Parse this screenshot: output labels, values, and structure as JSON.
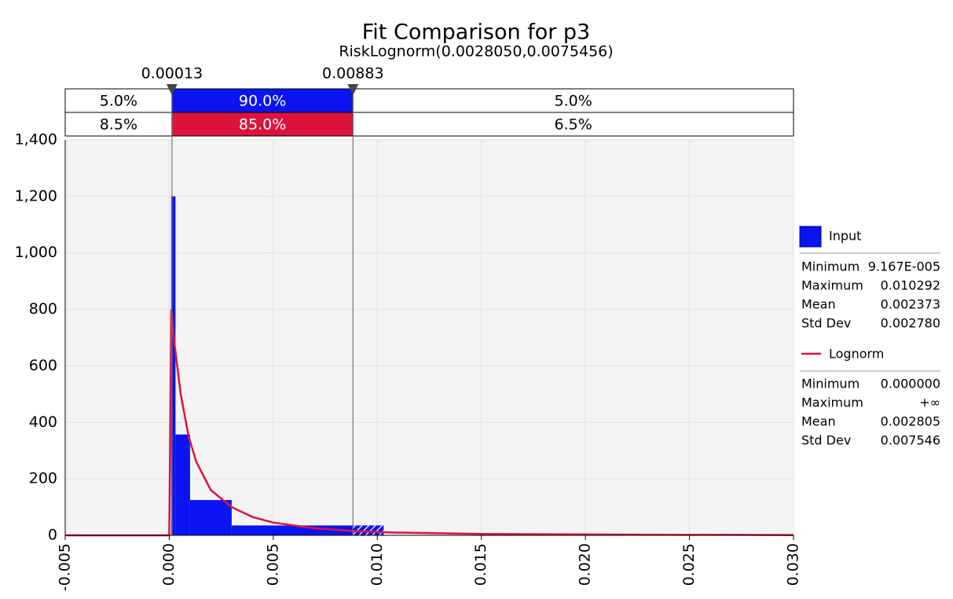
{
  "chart_data": {
    "type": "histogram",
    "title": "Fit Comparison for p3",
    "subtitle": "RiskLognorm(0.0028050,0.0075456)",
    "xlim": [
      -0.005,
      0.03
    ],
    "xticks": [
      -0.005,
      {
        "value": 0,
        "label": "0.000"
      },
      0.005,
      {
        "value": 0.01,
        "label": "0.010"
      },
      0.015,
      {
        "value": 0.02,
        "label": "0.020"
      },
      0.025,
      {
        "value": 0.03,
        "label": "0.030"
      }
    ],
    "ylim": [
      0,
      1400
    ],
    "yticks": [
      0,
      200,
      400,
      600,
      800,
      {
        "value": 1000,
        "label": "1,000"
      },
      {
        "value": 1200,
        "label": "1,200"
      },
      {
        "value": 1400,
        "label": "1,400"
      }
    ],
    "grid": true,
    "delimiters": [
      0.00013,
      0.00883
    ],
    "input_percents": {
      "values": [
        5,
        90,
        5
      ],
      "value_labels": [
        "5.0%",
        "90.0%",
        "5.0%"
      ],
      "color": "#0a14f0"
    },
    "fit_percents": {
      "values": [
        8.5,
        85,
        6.5
      ],
      "value_labels": [
        "8.5%",
        "85.0%",
        "6.5%"
      ],
      "color": "#dc143c"
    },
    "series": [
      {
        "name": "Input",
        "color": "#0a14f0",
        "bins": [
          9e-05,
          0.0003,
          0.001,
          0.003,
          0.0103
        ],
        "values": [
          1200,
          357,
          125,
          35
        ],
        "stats": [
          {
            "label": "Minimum",
            "value": "9.167E-005"
          },
          {
            "label": "Maximum",
            "value": "0.010292"
          },
          {
            "label": "Mean",
            "value": "0.002373"
          },
          {
            "label": "Std Dev",
            "value": "0.002780"
          }
        ]
      },
      {
        "name": "Lognorm",
        "color": "#dc143c",
        "x": [
          -0.005,
          0,
          0.0001,
          0.00025,
          0.00055,
          0.00093,
          0.0013,
          0.002,
          0.003,
          0.004,
          0.005,
          0.007,
          0.0089,
          0.0107,
          0.015,
          0.02,
          0.03
        ],
        "values": [
          0,
          0,
          800,
          680,
          500,
          350,
          260,
          160,
          100,
          65,
          45,
          25,
          15,
          10,
          5,
          3,
          1
        ],
        "stats": [
          {
            "label": "Minimum",
            "value": "0.000000"
          },
          {
            "label": "Maximum",
            "value": "+∞"
          },
          {
            "label": "Mean",
            "value": "0.002805"
          },
          {
            "label": "Std Dev",
            "value": "0.007546"
          }
        ]
      }
    ]
  }
}
